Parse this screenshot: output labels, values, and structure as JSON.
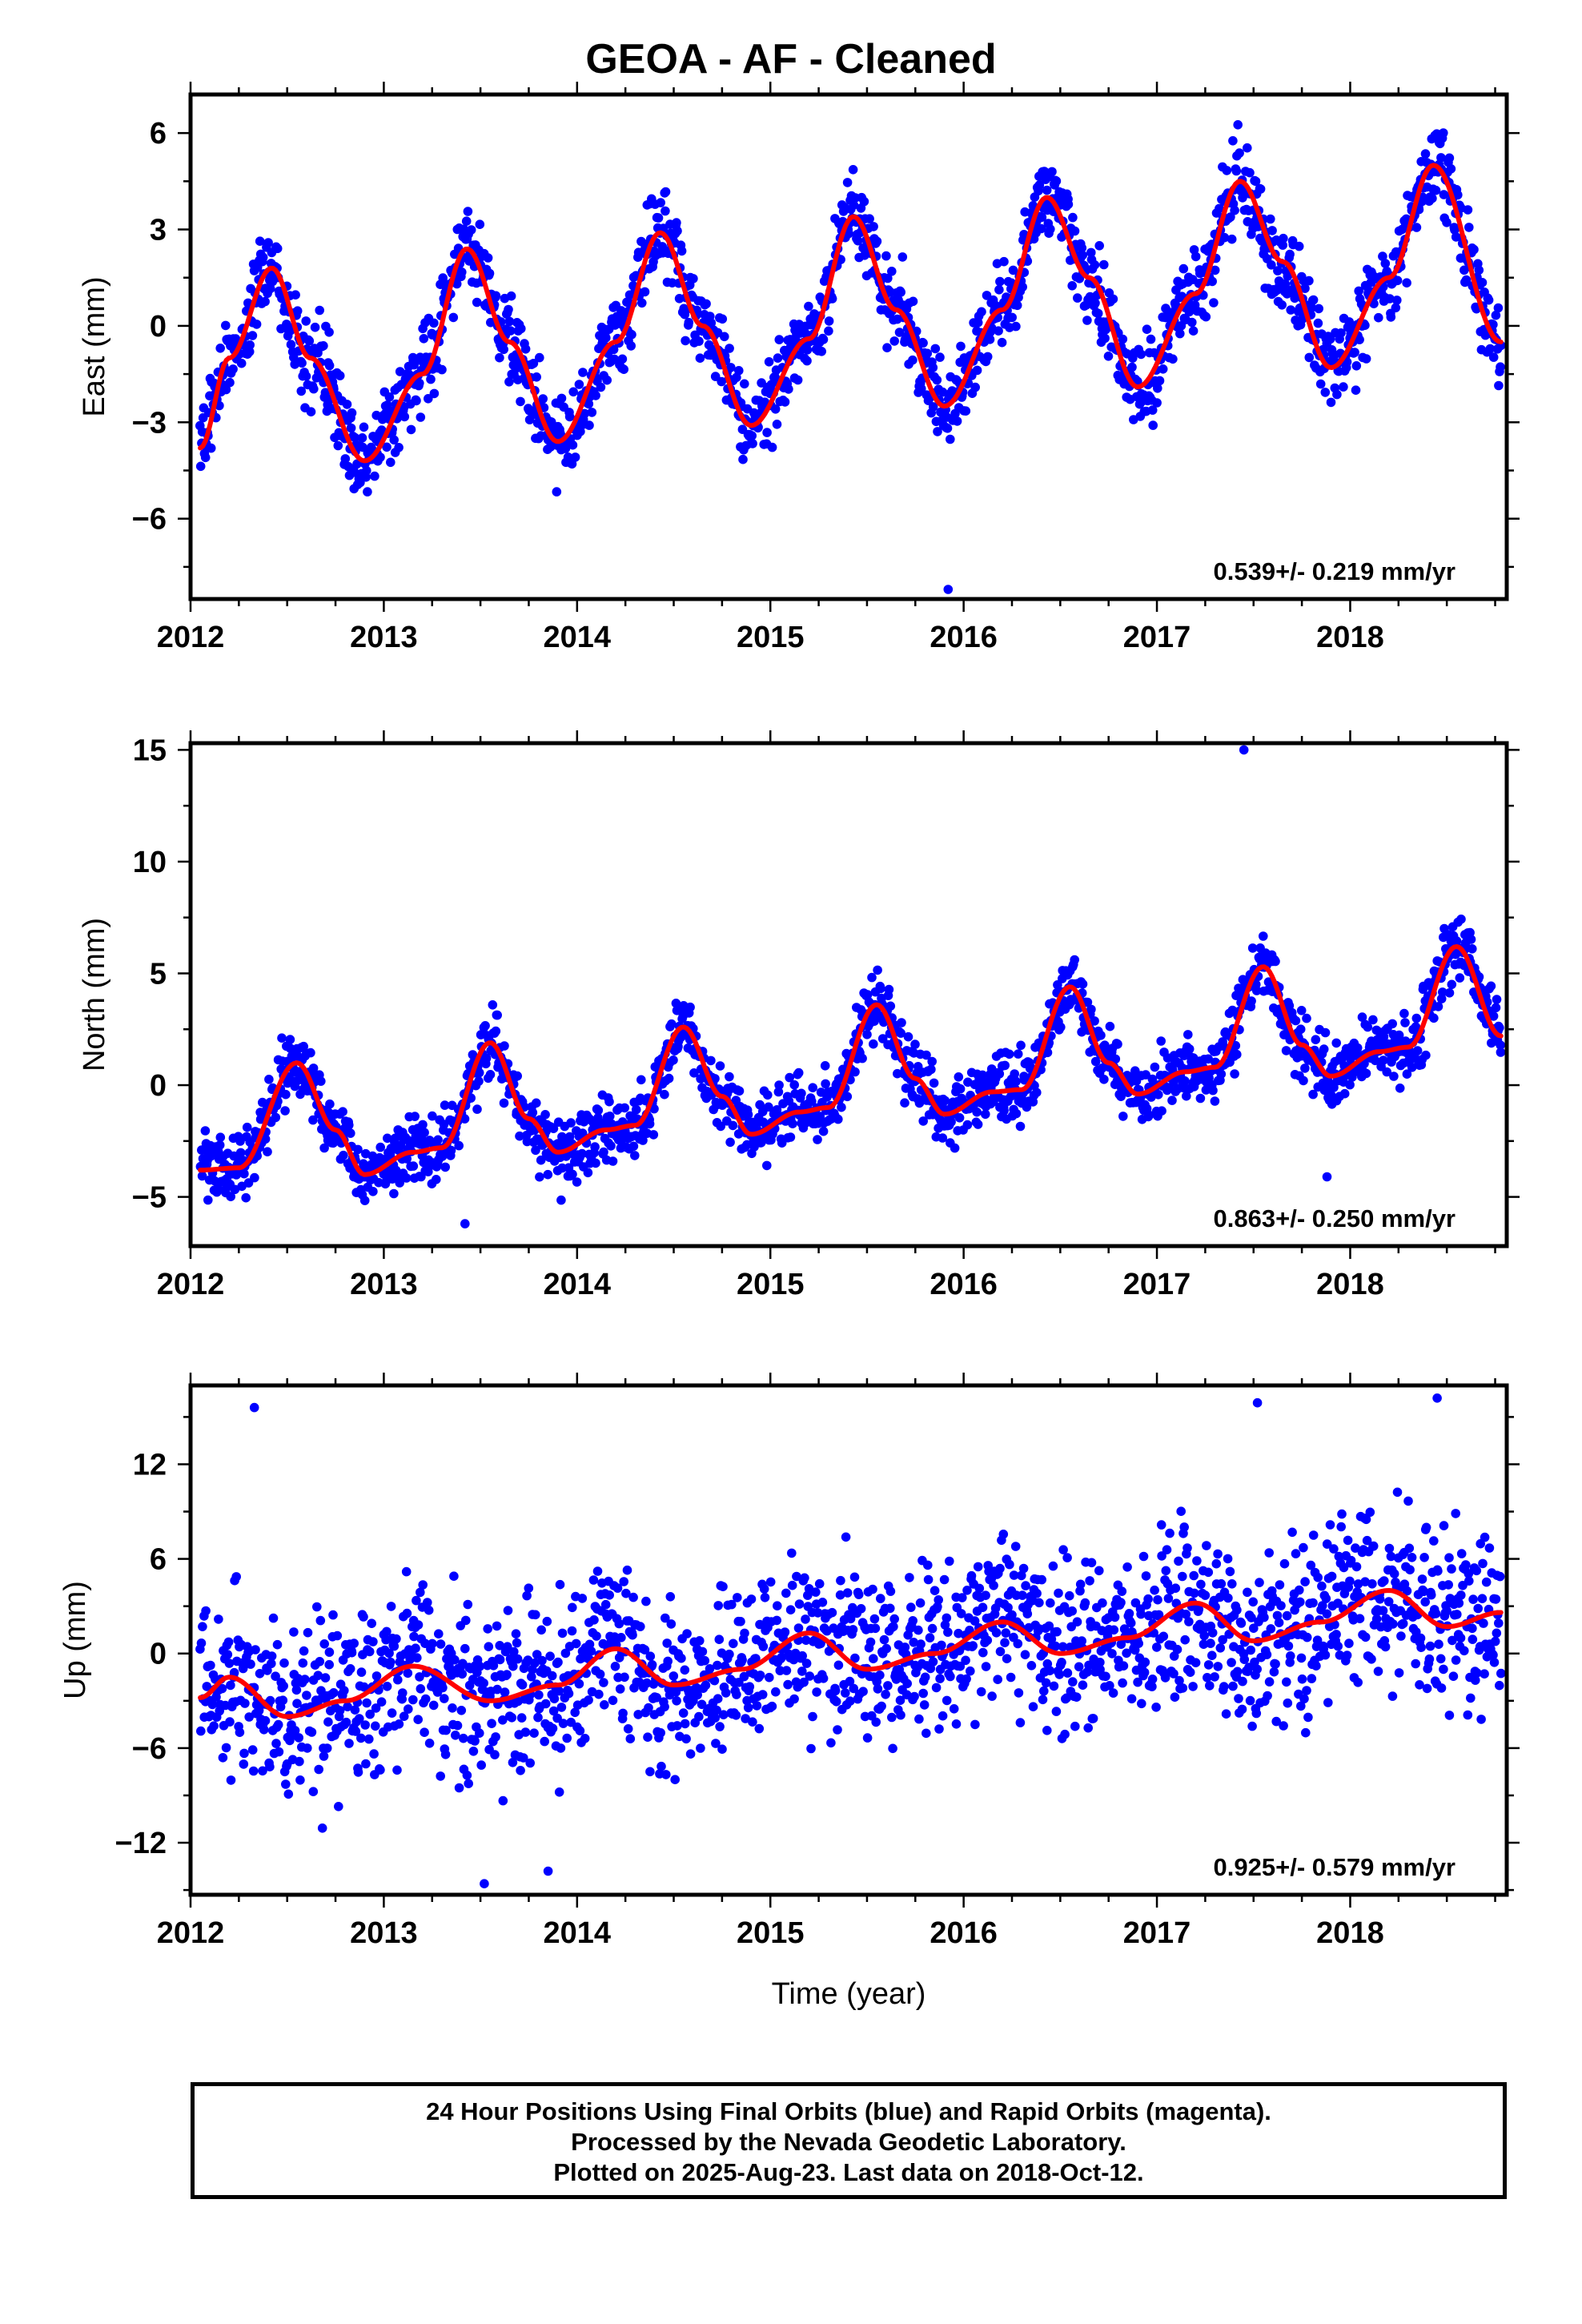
{
  "title": "GEOA  - AF - Cleaned",
  "footer": {
    "line1": "24 Hour Positions Using Final Orbits (blue) and Rapid Orbits (magenta).",
    "line2": "Processed by the Nevada Geodetic Laboratory.",
    "line3": "Plotted on 2025-Aug-23. Last data on 2018-Oct-12."
  },
  "colors": {
    "points": "#0000ff",
    "fit": "#ff0000",
    "frame": "#000000"
  },
  "chart_data": [
    {
      "type": "scatter",
      "ylabel": "East (mm)",
      "xlabel": "",
      "xlim": [
        2012,
        2018.81
      ],
      "ylim": [
        -8.5,
        7.2
      ],
      "xticks": [
        2012,
        2013,
        2014,
        2015,
        2016,
        2017,
        2018
      ],
      "yticks": [
        -6,
        -3,
        0,
        3,
        6
      ],
      "ytick_labels": [
        "−6",
        "−3",
        "0",
        "3",
        "6"
      ],
      "rate_label": "0.539+/- 0.219 mm/yr",
      "series": [
        {
          "role": "daily positions",
          "color": "#0000ff",
          "x_start": 2012.05,
          "x_end": 2018.78,
          "scatter_sd": 0.9,
          "outliers": [
            [
              2015.92,
              -8.2
            ]
          ]
        },
        {
          "role": "fit",
          "color": "#ff0000",
          "x": [
            2012.05,
            2012.2,
            2012.42,
            2012.62,
            2012.9,
            2013.2,
            2013.43,
            2013.65,
            2013.9,
            2014.2,
            2014.43,
            2014.65,
            2014.9,
            2015.2,
            2015.43,
            2015.65,
            2015.9,
            2016.2,
            2016.43,
            2016.65,
            2016.9,
            2017.2,
            2017.43,
            2017.65,
            2017.9,
            2018.2,
            2018.43,
            2018.78
          ],
          "y": [
            -3.8,
            -1.0,
            1.8,
            -1.0,
            -4.2,
            -1.5,
            2.4,
            -0.5,
            -3.6,
            -0.5,
            2.9,
            0.0,
            -3.1,
            -0.4,
            3.4,
            0.5,
            -2.5,
            0.5,
            4.0,
            1.5,
            -1.9,
            1.0,
            4.5,
            2.0,
            -1.3,
            1.5,
            5.0,
            -0.5
          ]
        }
      ]
    },
    {
      "type": "scatter",
      "ylabel": "North (mm)",
      "xlabel": "",
      "xlim": [
        2012,
        2018.81
      ],
      "ylim": [
        -7.2,
        15.3
      ],
      "xticks": [
        2012,
        2013,
        2014,
        2015,
        2016,
        2017,
        2018
      ],
      "yticks": [
        -5,
        0,
        5,
        10,
        15
      ],
      "ytick_labels": [
        "−5",
        "0",
        "5",
        "10",
        "15"
      ],
      "rate_label": "0.863+/- 0.250 mm/yr",
      "series": [
        {
          "role": "daily positions",
          "color": "#0000ff",
          "x_start": 2012.05,
          "x_end": 2018.78,
          "scatter_sd": 1.0,
          "outliers": [
            [
              2017.45,
              15.0
            ],
            [
              2017.88,
              -4.1
            ],
            [
              2013.42,
              -6.2
            ]
          ]
        },
        {
          "role": "fit",
          "color": "#ff0000",
          "x": [
            2012.05,
            2012.25,
            2012.55,
            2012.75,
            2012.9,
            2013.15,
            2013.3,
            2013.55,
            2013.75,
            2013.9,
            2014.15,
            2014.3,
            2014.55,
            2014.75,
            2014.9,
            2015.15,
            2015.3,
            2015.55,
            2015.75,
            2015.9,
            2016.15,
            2016.3,
            2016.55,
            2016.75,
            2016.9,
            2017.15,
            2017.3,
            2017.55,
            2017.75,
            2017.9,
            2018.15,
            2018.3,
            2018.55,
            2018.78
          ],
          "y": [
            -3.8,
            -3.7,
            1.0,
            -2.0,
            -4.0,
            -3.0,
            -2.8,
            1.9,
            -1.5,
            -3.0,
            -2.0,
            -1.8,
            2.6,
            -0.5,
            -2.2,
            -1.2,
            -1.0,
            3.6,
            0.3,
            -1.3,
            -0.3,
            -0.2,
            4.4,
            1.0,
            -0.4,
            0.6,
            0.8,
            5.3,
            1.8,
            0.4,
            1.5,
            1.7,
            6.2,
            2.2
          ]
        }
      ]
    },
    {
      "type": "scatter",
      "ylabel": "Up (mm)",
      "xlabel": "Time (year)",
      "xlim": [
        2012,
        2018.81
      ],
      "ylim": [
        -15.3,
        17.0
      ],
      "xticks": [
        2012,
        2013,
        2014,
        2015,
        2016,
        2017,
        2018
      ],
      "yticks": [
        -12,
        -6,
        0,
        6,
        12
      ],
      "ytick_labels": [
        "−12",
        "−6",
        "0",
        "6",
        "12"
      ],
      "rate_label": "0.925+/- 0.579 mm/yr",
      "series": [
        {
          "role": "daily positions",
          "color": "#0000ff",
          "x_start": 2012.05,
          "x_end": 2018.78,
          "scatter_sd": 3.6,
          "outliers": [
            [
              2012.33,
              15.6
            ],
            [
              2018.45,
              16.2
            ],
            [
              2017.52,
              15.9
            ],
            [
              2013.52,
              -14.6
            ],
            [
              2013.85,
              -13.8
            ]
          ]
        },
        {
          "role": "fit",
          "color": "#ff0000",
          "x": [
            2012.05,
            2012.2,
            2012.5,
            2012.8,
            2013.15,
            2013.55,
            2013.9,
            2014.2,
            2014.5,
            2014.85,
            2015.2,
            2015.5,
            2015.85,
            2016.2,
            2016.5,
            2016.85,
            2017.2,
            2017.5,
            2017.85,
            2018.2,
            2018.5,
            2018.78
          ],
          "y": [
            -2.8,
            -1.5,
            -4.0,
            -3.0,
            -0.8,
            -3.0,
            -2.0,
            0.3,
            -2.0,
            -1.0,
            1.3,
            -1.0,
            0.0,
            2.0,
            0.0,
            1.0,
            3.2,
            0.8,
            2.0,
            4.0,
            1.7,
            2.6
          ]
        }
      ]
    }
  ]
}
